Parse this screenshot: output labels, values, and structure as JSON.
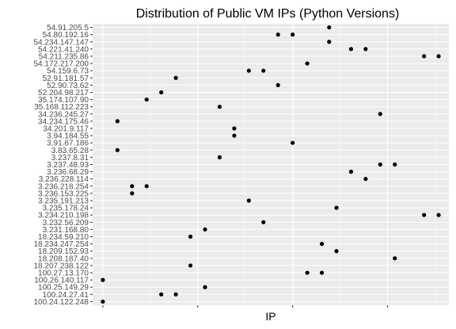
{
  "chart_data": {
    "type": "scatter",
    "title": "Distribution of Public VM IPs (Python Versions)",
    "xlabel": "IP",
    "ylabel": "",
    "x_tick_labels_visible": false,
    "grid": true,
    "background": "#ebebeb",
    "point_color": "#000000",
    "categories": [
      "100.24.122.248",
      "100.24.27.41",
      "100.25.149.29",
      "100.26.140.117",
      "100.27.13.170",
      "18.207.238.122",
      "18.208.187.40",
      "18.209.152.93",
      "18.234.247.254",
      "18.234.59.210",
      "3.231.168.80",
      "3.232.56.209",
      "3.234.210.198",
      "3.235.178.24",
      "3.235.191.213",
      "3.236.153.225",
      "3.236.218.254",
      "3.236.228.114",
      "3.236.68.29",
      "3.237.48.93",
      "3.237.8.31",
      "3.83.65.28",
      "3.91.67.186",
      "3.94.184.55",
      "34.201.9.117",
      "34.234.175.46",
      "34.236.245.27",
      "35.168.112.223",
      "35.174.107.90",
      "52.204.98.217",
      "52.90.73.62",
      "52.91.181.57",
      "54.159.6.73",
      "54.172.217.200",
      "54.211.235.86",
      "54.221.41.240",
      "54.234.147.147",
      "54.80.192.16",
      "54.91.205.5"
    ],
    "points": [
      {
        "category": "100.24.122.248",
        "x": [
          1
        ]
      },
      {
        "category": "100.24.27.41",
        "x": [
          5,
          6
        ]
      },
      {
        "category": "100.25.149.29",
        "x": [
          8
        ]
      },
      {
        "category": "100.26.140.117",
        "x": [
          1
        ]
      },
      {
        "category": "100.27.13.170",
        "x": [
          15,
          16
        ]
      },
      {
        "category": "18.207.238.122",
        "x": [
          7
        ]
      },
      {
        "category": "18.208.187.40",
        "x": [
          21
        ]
      },
      {
        "category": "18.209.152.93",
        "x": [
          17
        ]
      },
      {
        "category": "18.234.247.254",
        "x": [
          16
        ]
      },
      {
        "category": "18.234.59.210",
        "x": [
          7
        ]
      },
      {
        "category": "3.231.168.80",
        "x": [
          8
        ]
      },
      {
        "category": "3.232.56.209",
        "x": [
          12
        ]
      },
      {
        "category": "3.234.210.198",
        "x": [
          23,
          24
        ]
      },
      {
        "category": "3.235.178.24",
        "x": [
          17
        ]
      },
      {
        "category": "3.235.191.213",
        "x": [
          11
        ]
      },
      {
        "category": "3.236.153.225",
        "x": [
          3
        ]
      },
      {
        "category": "3.236.218.254",
        "x": [
          3,
          4
        ]
      },
      {
        "category": "3.236.228.114",
        "x": [
          19
        ]
      },
      {
        "category": "3.236.68.29",
        "x": [
          18
        ]
      },
      {
        "category": "3.237.48.93",
        "x": [
          20,
          21
        ]
      },
      {
        "category": "3.237.8.31",
        "x": [
          9
        ]
      },
      {
        "category": "3.83.65.28",
        "x": [
          2
        ]
      },
      {
        "category": "3.91.67.186",
        "x": [
          14
        ]
      },
      {
        "category": "3.94.184.55",
        "x": [
          10
        ]
      },
      {
        "category": "34.201.9.117",
        "x": [
          10
        ]
      },
      {
        "category": "34.234.175.46",
        "x": [
          2
        ]
      },
      {
        "category": "34.236.245.27",
        "x": [
          20
        ]
      },
      {
        "category": "35.168.112.223",
        "x": [
          9
        ]
      },
      {
        "category": "35.174.107.90",
        "x": [
          4
        ]
      },
      {
        "category": "52.204.98.217",
        "x": [
          5
        ]
      },
      {
        "category": "52.90.73.62",
        "x": [
          13
        ]
      },
      {
        "category": "52.91.181.57",
        "x": [
          6
        ]
      },
      {
        "category": "54.159.6.73",
        "x": [
          11,
          12
        ]
      },
      {
        "category": "54.172.217.200",
        "x": [
          15
        ]
      },
      {
        "category": "54.211.235.86",
        "x": [
          23,
          24
        ]
      },
      {
        "category": "54.221.41.240",
        "x": [
          18,
          19
        ]
      },
      {
        "category": "54.234.147.147",
        "x": [
          16.5
        ]
      },
      {
        "category": "54.80.192.16",
        "x": [
          13,
          14
        ]
      },
      {
        "category": "54.91.205.5",
        "x": [
          16.5
        ]
      }
    ],
    "xlim": [
      0.3,
      24.7
    ]
  }
}
